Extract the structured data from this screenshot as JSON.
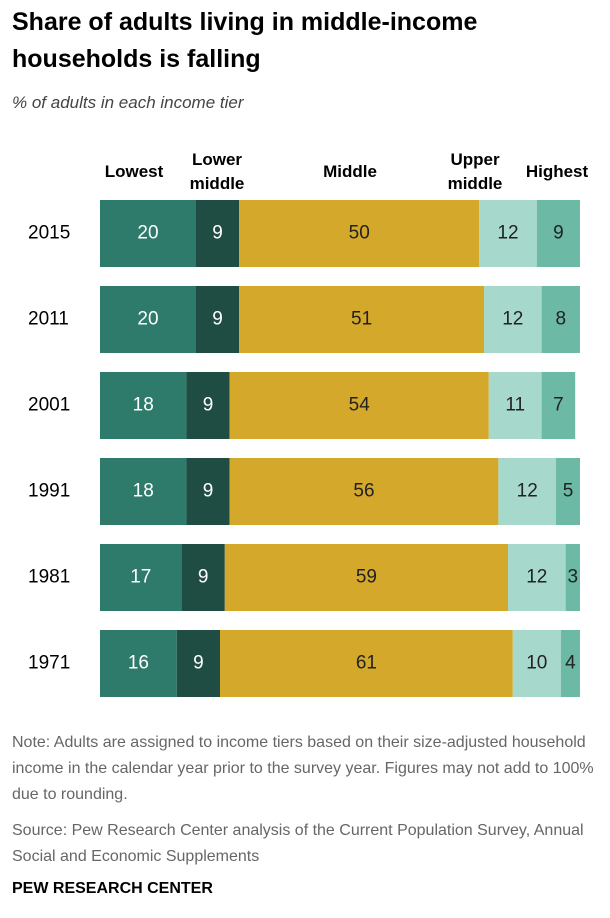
{
  "chart_data": {
    "type": "stacked-bar-horizontal",
    "title": "Share of adults living in middle-income households is falling",
    "subtitle": "% of adults in each income tier",
    "categories": [
      "2015",
      "2011",
      "2001",
      "1991",
      "1981",
      "1971"
    ],
    "series": [
      {
        "name": "Lowest",
        "color": "#2e7a6b",
        "values": [
          20,
          20,
          18,
          18,
          17,
          16
        ]
      },
      {
        "name": "Lower middle",
        "color": "#1f4d44",
        "values": [
          9,
          9,
          9,
          9,
          9,
          9
        ]
      },
      {
        "name": "Middle",
        "color": "#d4a82a",
        "values": [
          50,
          51,
          54,
          56,
          59,
          61
        ]
      },
      {
        "name": "Upper middle",
        "color": "#a7d8cc",
        "values": [
          12,
          12,
          11,
          12,
          12,
          10
        ]
      },
      {
        "name": "Highest",
        "color": "#6cbaa5",
        "values": [
          9,
          8,
          7,
          5,
          3,
          4
        ]
      }
    ],
    "xlim": [
      0,
      100
    ],
    "note": "Note: Adults are assigned to income tiers based on their size-adjusted household income in the calendar year prior to the survey year. Figures may not add to 100% due to rounding.",
    "source": "Source: Pew Research Center analysis of the Current Population Survey, Annual Social and Economic Supplements",
    "footer": "PEW RESEARCH CENTER"
  }
}
